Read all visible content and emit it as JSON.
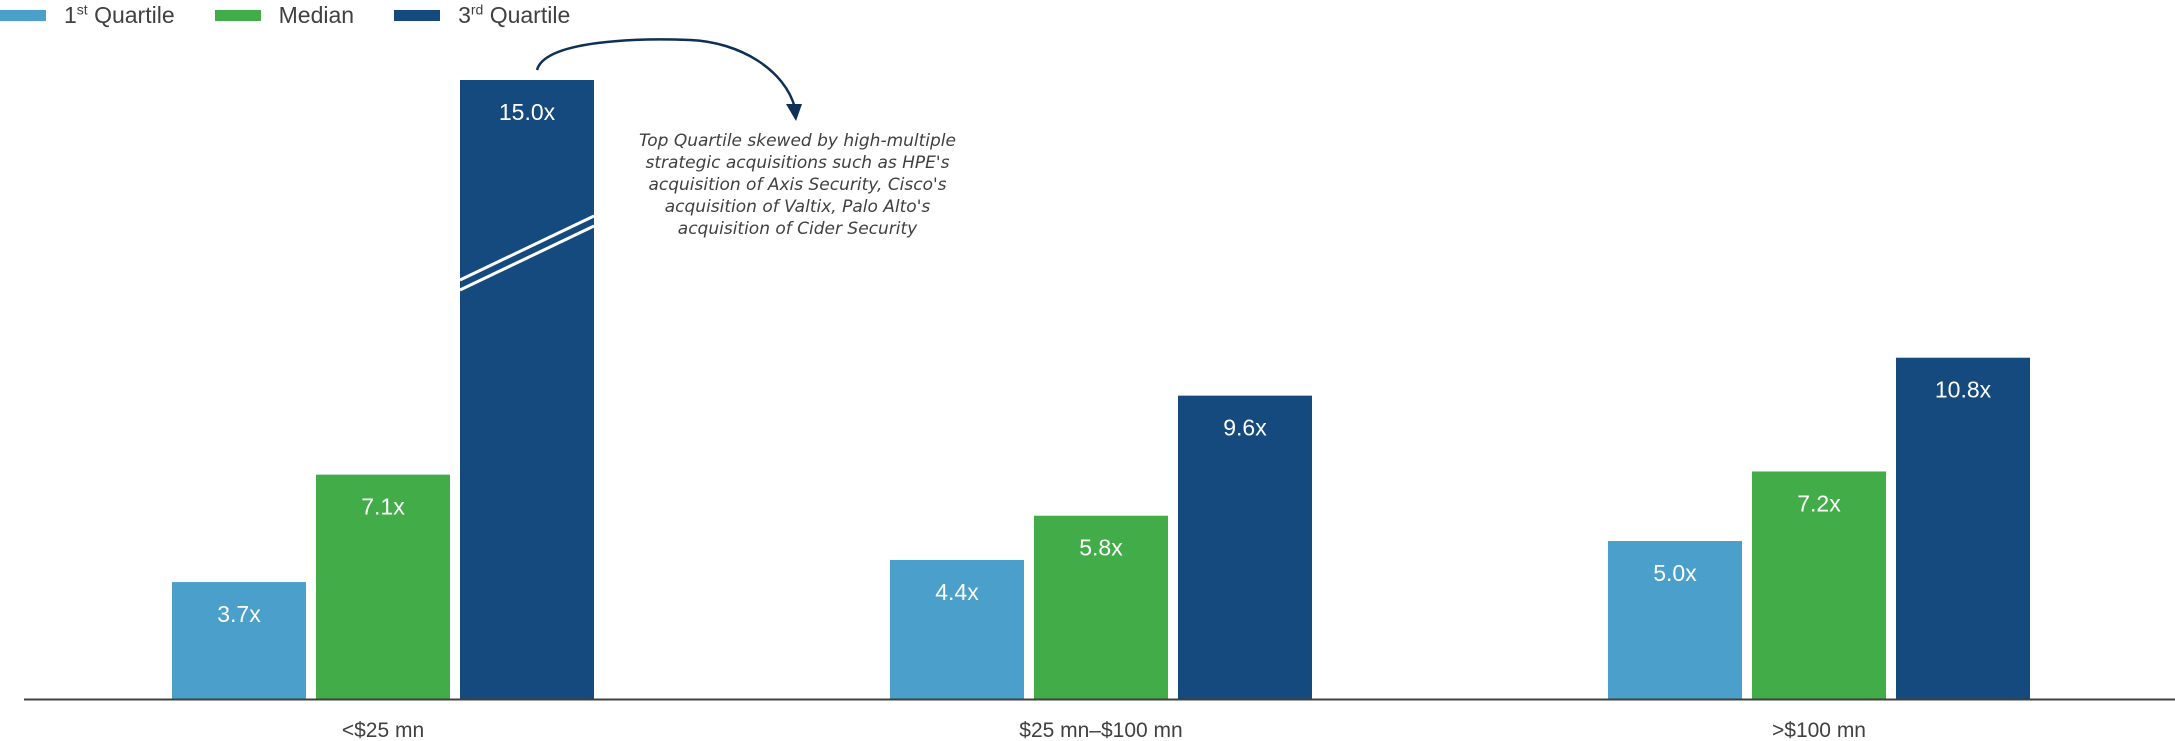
{
  "legend": [
    {
      "prefix": "1",
      "sup": "st",
      "suffix": " Quartile",
      "color": "#4a9fcb"
    },
    {
      "prefix": "Median",
      "sup": "",
      "suffix": "",
      "color": "#42ac49"
    },
    {
      "prefix": "3",
      "sup": "rd",
      "suffix": " Quartile",
      "color": "#154a7f"
    }
  ],
  "annotation": "Top Quartile skewed by high-multiple strategic acquisitions such as HPE's acquisition of Axis Security, Cisco's acquisition of Valtix, Palo Alto's acquisition of Cider Security",
  "chart_data": {
    "type": "bar",
    "title": "",
    "xlabel": "",
    "ylabel": "",
    "categories": [
      "<$25 mn",
      "$25 mn–$100 mn",
      ">$100 mn"
    ],
    "series": [
      {
        "name": "1st Quartile",
        "values": [
          3.7,
          4.4,
          5.0
        ],
        "labels": [
          "3.7x",
          "4.4x",
          "5.0x"
        ],
        "color": "#4a9fcb"
      },
      {
        "name": "Median",
        "values": [
          7.1,
          5.8,
          7.2
        ],
        "labels": [
          "7.1x",
          "5.8x",
          "7.2x"
        ],
        "color": "#42ac49"
      },
      {
        "name": "3rd Quartile",
        "values": [
          15.0,
          9.6,
          10.8
        ],
        "labels": [
          "15.0x",
          "9.6x",
          "10.8x"
        ],
        "color": "#154a7f"
      }
    ],
    "axis_break": {
      "series": "3rd Quartile",
      "category": "<$25 mn"
    },
    "grid": false,
    "legend_position": "top-left"
  }
}
